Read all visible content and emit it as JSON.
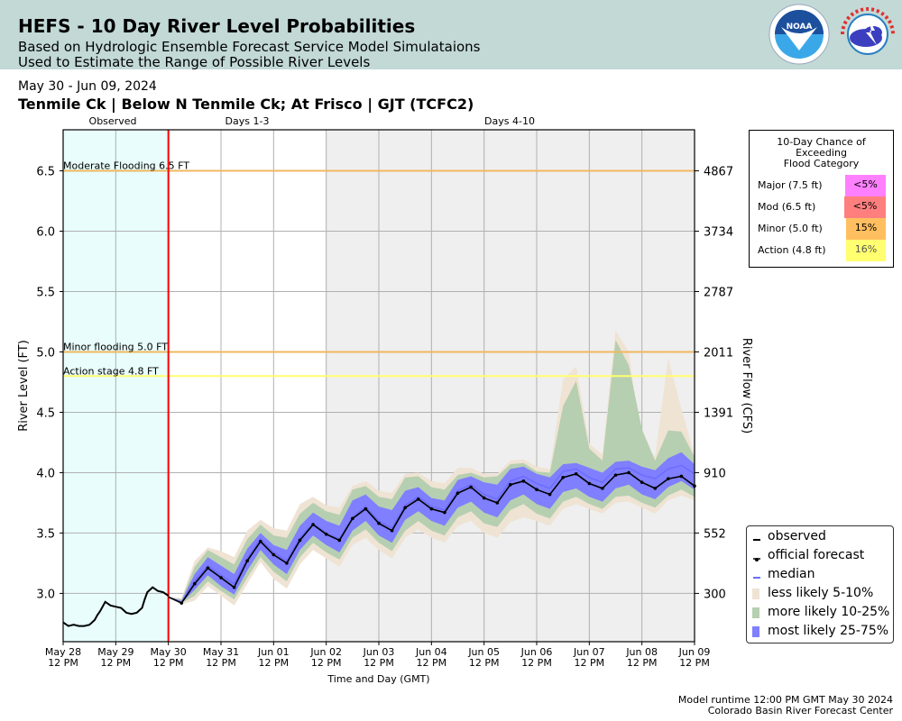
{
  "header": {
    "title": "HEFS - 10 Day River Level Probabilities",
    "subtitle1": "Based on Hydrologic Ensemble Forecast Service Model Simulataions",
    "subtitle2": "Used to Estimate the Range of Possible River Levels",
    "logos": [
      "noaa-logo",
      "nws-logo"
    ],
    "noaa_text": "NOAA"
  },
  "date_range": "May 30 - Jun 09, 2024",
  "station": "Tenmile Ck | Below N Tenmile Ck; At Frisco | GJT (TCFC2)",
  "flood_table": {
    "title_lines": [
      "10-Day Chance of",
      "Exceeding",
      "Flood Category"
    ],
    "rows": [
      {
        "label": "Major (7.5 ft)",
        "value": "<5%",
        "color": "#ff80ff"
      },
      {
        "label": "Mod (6.5 ft)",
        "value": "<5%",
        "color": "#ff7f7f"
      },
      {
        "label": "Minor (5.0 ft)",
        "value": "15%",
        "color": "#ffbf60"
      },
      {
        "label": "Action (4.8 ft)",
        "value": "16%",
        "color": "#ffff70"
      }
    ]
  },
  "footer": {
    "runtime": "Model runtime 12:00 PM GMT May 30 2024",
    "center": "Colorado Basin River Forecast Center"
  },
  "chart_data": {
    "type": "area",
    "title": "HEFS - 10 Day River Level Probabilities",
    "xlabel": "Time and Day (GMT)",
    "ylabel": "River Level (FT)",
    "ylabel_right": "River Flow (CFS)",
    "ylim": [
      2.6,
      6.84
    ],
    "xlim_days": [
      0,
      12
    ],
    "grid": true,
    "x_ticks": [
      {
        "d": 0,
        "l1": "May 28",
        "l2": "12 PM"
      },
      {
        "d": 1,
        "l1": "May 29",
        "l2": "12 PM"
      },
      {
        "d": 2,
        "l1": "May 30",
        "l2": "12 PM"
      },
      {
        "d": 3,
        "l1": "May 31",
        "l2": "12 PM"
      },
      {
        "d": 4,
        "l1": "Jun 01",
        "l2": "12 PM"
      },
      {
        "d": 5,
        "l1": "Jun 02",
        "l2": "12 PM"
      },
      {
        "d": 6,
        "l1": "Jun 03",
        "l2": "12 PM"
      },
      {
        "d": 7,
        "l1": "Jun 04",
        "l2": "12 PM"
      },
      {
        "d": 8,
        "l1": "Jun 05",
        "l2": "12 PM"
      },
      {
        "d": 9,
        "l1": "Jun 06",
        "l2": "12 PM"
      },
      {
        "d": 10,
        "l1": "Jun 07",
        "l2": "12 PM"
      },
      {
        "d": 11,
        "l1": "Jun 08",
        "l2": "12 PM"
      },
      {
        "d": 12,
        "l1": "Jun 09",
        "l2": "12 PM"
      }
    ],
    "y_ticks": [
      3.0,
      3.5,
      4.0,
      4.5,
      5.0,
      5.5,
      6.0,
      6.5
    ],
    "y_ticks_right": [
      {
        "stage": 3.0,
        "label": "300"
      },
      {
        "stage": 3.5,
        "label": "552"
      },
      {
        "stage": 4.0,
        "label": "910"
      },
      {
        "stage": 4.5,
        "label": "1391"
      },
      {
        "stage": 5.0,
        "label": "2011"
      },
      {
        "stage": 5.5,
        "label": "2787"
      },
      {
        "stage": 6.0,
        "label": "3734"
      },
      {
        "stage": 6.5,
        "label": "4867"
      }
    ],
    "regions": [
      {
        "label": "Observed",
        "from": 0,
        "to": 2,
        "color": "#e8fdfc"
      },
      {
        "label": "Days 1-3",
        "from": 2,
        "to": 5,
        "color": "#ffffff"
      },
      {
        "label": "Days 4-10",
        "from": 5,
        "to": 12,
        "color": "#efefef"
      }
    ],
    "forecast_start_day": 2,
    "thresholds": [
      {
        "label": "Moderate Flooding 6.5 FT",
        "value": 6.5,
        "color": "#f0b860"
      },
      {
        "label": "Minor flooding 5.0 FT",
        "value": 5.0,
        "color": "#f0b860"
      },
      {
        "label": "Action stage 4.8 FT",
        "value": 4.8,
        "color": "#ffff70"
      }
    ],
    "legend": [
      {
        "label": "observed",
        "kind": "line",
        "color": "#000000"
      },
      {
        "label": "official forecast",
        "kind": "marker-line",
        "color": "#000000"
      },
      {
        "label": "median",
        "kind": "line",
        "color": "#6c6cff"
      },
      {
        "label": "less likely 5-10%",
        "kind": "patch",
        "color": "#efe3d4"
      },
      {
        "label": "more likely 10-25%",
        "kind": "patch",
        "color": "#b6cfb0"
      },
      {
        "label": "most likely 25-75%",
        "kind": "patch",
        "color": "#7f7fff"
      }
    ],
    "observed": {
      "x": [
        0,
        0.1,
        0.2,
        0.3,
        0.4,
        0.5,
        0.6,
        0.65,
        0.7,
        0.8,
        0.9,
        1.0,
        1.1,
        1.2,
        1.3,
        1.4,
        1.5,
        1.55,
        1.6,
        1.7,
        1.8,
        1.9,
        2.0
      ],
      "y": [
        2.76,
        2.73,
        2.74,
        2.73,
        2.73,
        2.74,
        2.78,
        2.82,
        2.85,
        2.93,
        2.9,
        2.89,
        2.88,
        2.84,
        2.83,
        2.84,
        2.88,
        2.95,
        3.01,
        3.05,
        3.02,
        3.01,
        2.98
      ]
    },
    "forecast_x": [
      2.0,
      2.25,
      2.5,
      2.75,
      3.0,
      3.25,
      3.5,
      3.75,
      4.0,
      4.25,
      4.5,
      4.75,
      5.0,
      5.25,
      5.5,
      5.75,
      6.0,
      6.25,
      6.5,
      6.75,
      7.0,
      7.25,
      7.5,
      7.75,
      8.0,
      8.25,
      8.5,
      8.75,
      9.0,
      9.25,
      9.5,
      9.75,
      10.0,
      10.25,
      10.5,
      10.75,
      11.0,
      11.25,
      11.5,
      11.75,
      12.0
    ],
    "official_forecast": [
      2.97,
      2.92,
      3.08,
      3.21,
      3.13,
      3.05,
      3.27,
      3.43,
      3.32,
      3.25,
      3.44,
      3.57,
      3.49,
      3.44,
      3.62,
      3.7,
      3.58,
      3.52,
      3.71,
      3.78,
      3.7,
      3.67,
      3.83,
      3.88,
      3.79,
      3.75,
      3.9,
      3.93,
      3.86,
      3.82,
      3.96,
      3.99,
      3.91,
      3.87,
      3.98,
      4.0,
      3.92,
      3.87,
      3.95,
      3.97,
      3.89
    ],
    "median": [
      2.97,
      2.92,
      3.1,
      3.23,
      3.15,
      3.08,
      3.29,
      3.45,
      3.34,
      3.27,
      3.46,
      3.58,
      3.5,
      3.45,
      3.63,
      3.72,
      3.6,
      3.54,
      3.73,
      3.8,
      3.72,
      3.69,
      3.85,
      3.9,
      3.82,
      3.78,
      3.93,
      3.97,
      3.91,
      3.87,
      4.01,
      4.03,
      3.96,
      3.92,
      4.03,
      4.04,
      3.98,
      3.95,
      4.03,
      4.06,
      3.99
    ],
    "band_25_75": {
      "low": [
        2.97,
        2.92,
        3.03,
        3.15,
        3.06,
        2.99,
        3.19,
        3.36,
        3.24,
        3.16,
        3.36,
        3.48,
        3.4,
        3.34,
        3.52,
        3.6,
        3.48,
        3.42,
        3.61,
        3.68,
        3.6,
        3.56,
        3.71,
        3.76,
        3.67,
        3.63,
        3.77,
        3.82,
        3.74,
        3.7,
        3.84,
        3.87,
        3.8,
        3.76,
        3.87,
        3.9,
        3.82,
        3.78,
        3.88,
        3.93,
        3.86
      ],
      "high": [
        2.97,
        2.94,
        3.16,
        3.3,
        3.23,
        3.16,
        3.37,
        3.5,
        3.4,
        3.36,
        3.56,
        3.67,
        3.6,
        3.56,
        3.77,
        3.82,
        3.72,
        3.69,
        3.85,
        3.88,
        3.79,
        3.77,
        3.94,
        3.97,
        3.92,
        3.9,
        4.03,
        4.05,
        3.99,
        3.96,
        4.07,
        4.08,
        4.04,
        4.0,
        4.09,
        4.1,
        4.05,
        4.02,
        4.12,
        4.17,
        4.07
      ]
    },
    "band_10_25": {
      "low": [
        2.97,
        2.92,
        2.98,
        3.1,
        3.02,
        2.95,
        3.13,
        3.3,
        3.18,
        3.1,
        3.3,
        3.42,
        3.34,
        3.28,
        3.46,
        3.53,
        3.42,
        3.35,
        3.52,
        3.6,
        3.52,
        3.48,
        3.63,
        3.68,
        3.58,
        3.55,
        3.69,
        3.74,
        3.66,
        3.62,
        3.76,
        3.8,
        3.74,
        3.7,
        3.8,
        3.81,
        3.75,
        3.71,
        3.81,
        3.86,
        3.8
      ],
      "high": [
        2.97,
        2.95,
        3.22,
        3.36,
        3.3,
        3.24,
        3.45,
        3.57,
        3.48,
        3.46,
        3.66,
        3.75,
        3.68,
        3.65,
        3.86,
        3.89,
        3.8,
        3.78,
        3.96,
        3.97,
        3.88,
        3.86,
        3.98,
        4.0,
        3.96,
        3.97,
        4.07,
        4.08,
        4.01,
        4.0,
        4.55,
        4.76,
        4.2,
        4.1,
        5.1,
        4.89,
        4.36,
        4.1,
        4.35,
        4.34,
        4.13
      ]
    },
    "band_5_10": {
      "low": [
        2.97,
        2.91,
        2.94,
        3.06,
        2.98,
        2.9,
        3.08,
        3.26,
        3.12,
        3.04,
        3.24,
        3.36,
        3.29,
        3.22,
        3.4,
        3.46,
        3.36,
        3.29,
        3.46,
        3.53,
        3.46,
        3.42,
        3.56,
        3.6,
        3.5,
        3.46,
        3.59,
        3.63,
        3.6,
        3.56,
        3.7,
        3.74,
        3.7,
        3.66,
        3.75,
        3.76,
        3.71,
        3.66,
        3.77,
        3.81,
        3.77
      ],
      "high": [
        2.97,
        2.96,
        3.27,
        3.38,
        3.35,
        3.3,
        3.52,
        3.61,
        3.54,
        3.52,
        3.74,
        3.8,
        3.73,
        3.71,
        3.89,
        3.93,
        3.85,
        3.83,
        3.99,
        4.0,
        3.93,
        3.91,
        4.04,
        4.04,
        3.99,
        3.99,
        4.1,
        4.11,
        4.05,
        4.03,
        4.77,
        4.88,
        4.24,
        4.15,
        5.18,
        5.0,
        4.22,
        4.14,
        4.95,
        4.53,
        4.14
      ]
    }
  }
}
